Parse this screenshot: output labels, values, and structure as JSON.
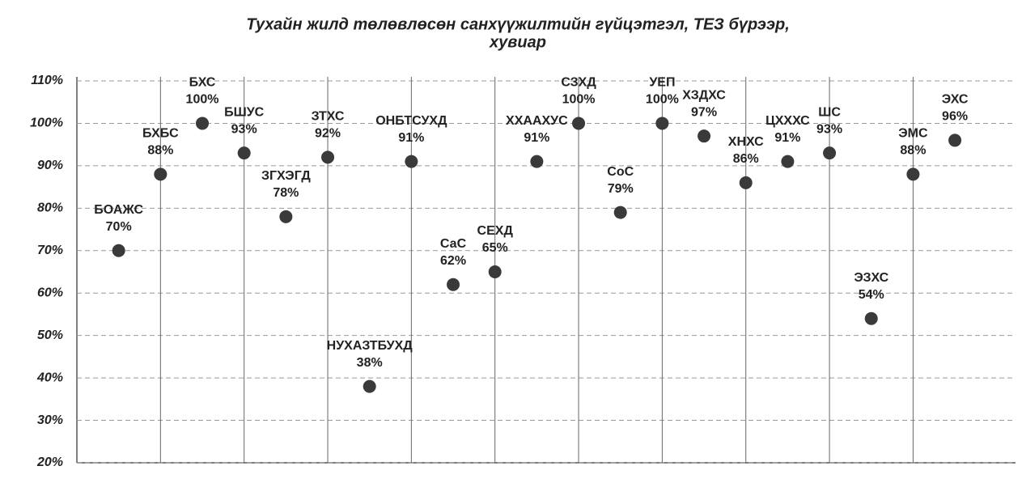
{
  "chart_data": {
    "type": "scatter",
    "title": [
      "Тухайн жилд төлөвлөсөн санхүүжилтийн гүйцэтгэл, ТЕЗ бүрээр,",
      "хувиар"
    ],
    "categories": [
      "БОАЖС",
      "БХБС",
      "БХС",
      "БШУС",
      "ЗГХЭГД",
      "ЗТХС",
      "НУХАЗТБУХД",
      "ОНБТСУХД",
      "СаС",
      "СЕХД",
      "ХХААХУС",
      "СЗХД",
      "СоС",
      "УЕП",
      "ХЗДХС",
      "ХНХС",
      "ЦХХХС",
      "ШС",
      "ЭЗХС",
      "ЭМС",
      "ЭХС"
    ],
    "values": [
      70,
      88,
      100,
      93,
      78,
      92,
      38,
      91,
      62,
      65,
      91,
      100,
      79,
      100,
      97,
      86,
      91,
      93,
      54,
      88,
      96
    ],
    "value_labels": [
      "70%",
      "88%",
      "100%",
      "93%",
      "78%",
      "92%",
      "38%",
      "91%",
      "62%",
      "65%",
      "91%",
      "100%",
      "79%",
      "100%",
      "97%",
      "86%",
      "91%",
      "93%",
      "54%",
      "88%",
      "96%"
    ],
    "color": "#3a3a3a",
    "ylim": [
      20,
      110
    ],
    "yticks": [
      {
        "value": 20,
        "label": "20%"
      },
      {
        "value": 30,
        "label": "30%"
      },
      {
        "value": 40,
        "label": "40%"
      },
      {
        "value": 50,
        "label": "50%"
      },
      {
        "value": 60,
        "label": "60%"
      },
      {
        "value": 70,
        "label": "70%"
      },
      {
        "value": 80,
        "label": "80%"
      },
      {
        "value": 90,
        "label": "90%"
      },
      {
        "value": 100,
        "label": "100%"
      },
      {
        "value": 110,
        "label": "110%"
      }
    ],
    "grid": true
  }
}
